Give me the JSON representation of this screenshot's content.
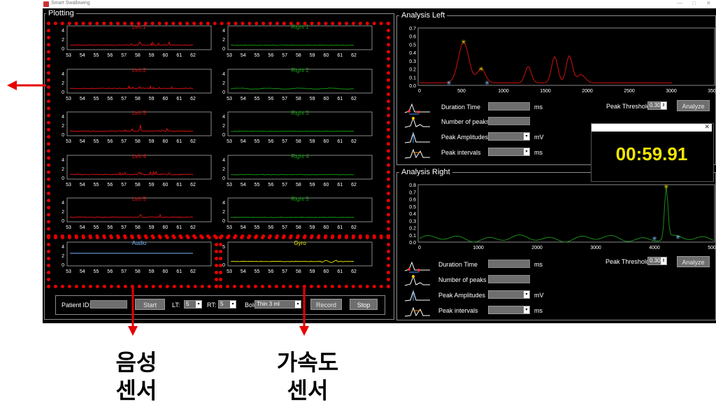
{
  "window": {
    "title": "Smart Swallowing",
    "controls": [
      "—",
      "□",
      "✕"
    ]
  },
  "plotting": {
    "label": "Plotting",
    "xticks": [
      "53",
      "54",
      "55",
      "56",
      "57",
      "58",
      "59",
      "60",
      "61",
      "62"
    ],
    "left_plots": [
      {
        "title": "Left 1",
        "yticks": [
          "4",
          "2",
          "0"
        ]
      },
      {
        "title": "Left 2",
        "yticks": [
          "4",
          "2",
          "0"
        ]
      },
      {
        "title": "Left 3",
        "yticks": [
          "4",
          "2",
          "0"
        ]
      },
      {
        "title": "Left 4",
        "yticks": [
          "4",
          "2",
          "0"
        ]
      },
      {
        "title": "Left 5",
        "yticks": [
          "4",
          "2",
          "0"
        ]
      }
    ],
    "right_plots": [
      {
        "title": "Right 1",
        "yticks": [
          "4",
          "2",
          "0"
        ]
      },
      {
        "title": "Right 2",
        "yticks": [
          "4",
          "2",
          "0"
        ]
      },
      {
        "title": "Right 3",
        "yticks": [
          "4",
          "2",
          "0"
        ]
      },
      {
        "title": "Right 4",
        "yticks": [
          "4",
          "2",
          "0"
        ]
      },
      {
        "title": "Right 5",
        "yticks": [
          "4",
          "2",
          "0"
        ]
      }
    ],
    "audio": {
      "title": "Audio",
      "yticks": [
        "4",
        "2",
        "0"
      ]
    },
    "gyro": {
      "title": "Gyro",
      "yticks": [
        "5",
        "0"
      ]
    }
  },
  "controls": {
    "patient_id_label": "Patient ID:",
    "patient_id_value": "",
    "start_label": "Start",
    "lt_label": "LT:",
    "lt_value": "5",
    "rt_label": "RT:",
    "rt_value": "5",
    "bolus_label": "Bolus:",
    "bolus_value": "Thin 3 ml",
    "record_label": "Record",
    "stop_label": "Stop"
  },
  "analysis_left": {
    "label": "Analysis Left",
    "yticks": [
      "0.7",
      "0.6",
      "0.5",
      "0.4",
      "0.3",
      "0.2",
      "0.1",
      "0.0"
    ],
    "xticks": [
      "0",
      "500",
      "1000",
      "1500",
      "2000",
      "2500",
      "3000",
      "3500"
    ],
    "duration_label": "Duration Time",
    "duration_unit": "ms",
    "peaks_label": "Number of peaks",
    "amplitudes_label": "Peak Amplitudes",
    "amplitudes_unit": "mV",
    "intervals_label": "Peak intervals",
    "intervals_unit": "ms",
    "threshold_label": "Peak Threshold",
    "threshold_value": "0.30",
    "analyze_label": "Analyze"
  },
  "analysis_right": {
    "label": "Analysis Right",
    "yticks": [
      "0.8",
      "0.7",
      "0.6",
      "0.5",
      "0.4",
      "0.3",
      "0.2",
      "0.1",
      "0.0"
    ],
    "xticks": [
      "0",
      "1000",
      "2000",
      "3000",
      "4000",
      "5000"
    ],
    "duration_label": "Duration Time",
    "duration_unit": "ms",
    "peaks_label": "Number of peaks",
    "amplitudes_label": "Peak Amplitudes",
    "amplitudes_unit": "mV",
    "intervals_label": "Peak intervals",
    "intervals_unit": "ms",
    "threshold_label": "Peak Threshold",
    "threshold_value": "0.30",
    "analyze_label": "Analyze"
  },
  "timer": {
    "value": "00:59.91"
  },
  "annotations": {
    "audio_sensor": "음성\n센서",
    "gyro_sensor": "가속도\n센서"
  },
  "colors": {
    "left": "#e01010",
    "right": "#10a010",
    "audio": "#7ab8ff",
    "gyro": "#f0f000",
    "highlight": "#e60000",
    "timer": "#f2e600"
  }
}
